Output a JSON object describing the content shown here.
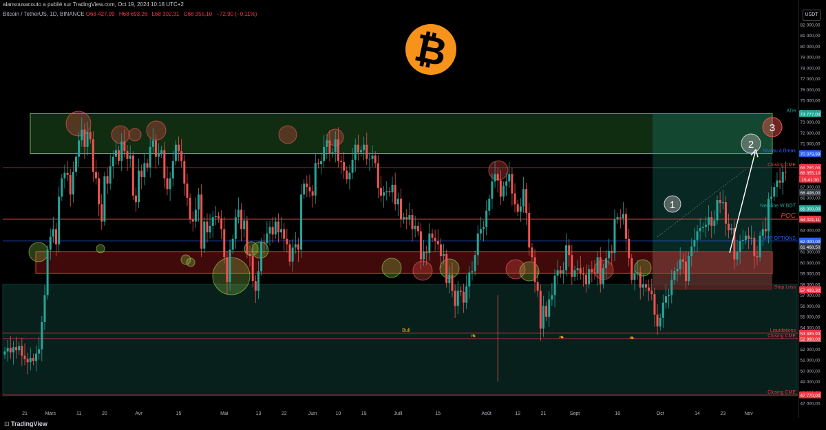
{
  "header": {
    "title": "alansousacouto a publié sur TradingView.com, Oct 19, 2024 10:18 UTC+2",
    "symbol": "Bitcoin / TetherUS, 1D, BINANCE",
    "ohlc": [
      "O68 427,99",
      "H68 693,26",
      "L68 302,31",
      "C68 355,10",
      "−72,90 (−0,11%)"
    ]
  },
  "currency": "USDT",
  "footer": {
    "logo_text": "TradingView"
  },
  "chart_data": {
    "type": "candlestick",
    "y_axis": {
      "range": [
        46500,
        82500
      ],
      "ticks": [
        47000,
        48000,
        49000,
        50000,
        51000,
        52000,
        53000,
        54000,
        55000,
        56000,
        57000,
        58000,
        59000,
        60000,
        61000,
        62000,
        63000,
        64000,
        65000,
        66000,
        67000,
        68000,
        69000,
        70000,
        71000,
        72000,
        73000,
        74000,
        75000,
        76000,
        77000,
        78000,
        79000,
        80000,
        81000,
        82000
      ],
      "tick_labels": [
        "47 000,00",
        "48 000,00",
        "49 000,00",
        "50 000,00",
        "51 000,00",
        "52 000,00",
        "53 000,00",
        "54 000,00",
        "55 000,00",
        "56 000,00",
        "57 000,00",
        "58 000,00",
        "59 000,00",
        "60 000,00",
        "61 000,00",
        "62 000,00",
        "63 000,00",
        "64 000,00",
        "65 000,00",
        "66 000,00",
        "67 000,00",
        "68 000,00",
        "69 000,00",
        "70 000,00",
        "71 000,00",
        "72 000,00",
        "73 000,00",
        "74 000,00",
        "75 000,00",
        "76 000,00",
        "77 000,00",
        "78 000,00",
        "79 000,00",
        "80 000,00",
        "81 000,00",
        "82 000,00"
      ]
    },
    "x_axis": {
      "labels": [
        {
          "text": "21",
          "date": "2024-02-21"
        },
        {
          "text": "Mars",
          "date": "2024-03-01"
        },
        {
          "text": "11",
          "date": "2024-03-11"
        },
        {
          "text": "20",
          "date": "2024-03-20"
        },
        {
          "text": "Avr",
          "date": "2024-04-01"
        },
        {
          "text": "15",
          "date": "2024-04-15"
        },
        {
          "text": "Mai",
          "date": "2024-05-01"
        },
        {
          "text": "13",
          "date": "2024-05-13"
        },
        {
          "text": "22",
          "date": "2024-05-22"
        },
        {
          "text": "Juin",
          "date": "2024-06-01"
        },
        {
          "text": "10",
          "date": "2024-06-10"
        },
        {
          "text": "19",
          "date": "2024-06-19"
        },
        {
          "text": "Juill",
          "date": "2024-07-01"
        },
        {
          "text": "15",
          "date": "2024-07-15"
        },
        {
          "text": "Août",
          "date": "2024-08-01"
        },
        {
          "text": "12",
          "date": "2024-08-12"
        },
        {
          "text": "21",
          "date": "2024-08-21"
        },
        {
          "text": "Sept",
          "date": "2024-09-01"
        },
        {
          "text": "16",
          "date": "2024-09-16"
        },
        {
          "text": "Oct",
          "date": "2024-10-01"
        },
        {
          "text": "14",
          "date": "2024-10-14"
        },
        {
          "text": "23",
          "date": "2024-10-23"
        },
        {
          "text": "Nov",
          "date": "2024-11-01"
        }
      ]
    },
    "candle_closes": {
      "start_date": "2024-02-14",
      "up_color": "#26a69a",
      "down_color": "#ef5350",
      "values": [
        51800,
        52100,
        51700,
        52200,
        51900,
        52300,
        51400,
        51100,
        50800,
        51200,
        50900,
        51600,
        52000,
        54500,
        57000,
        61200,
        62400,
        63100,
        61700,
        66100,
        67800,
        68300,
        68100,
        66300,
        68400,
        69800,
        71300,
        72300,
        70700,
        72100,
        71400,
        68400,
        67800,
        65400,
        63800,
        68000,
        67300,
        68900,
        69800,
        70400,
        69400,
        71200,
        70300,
        69600,
        69900,
        66200,
        65600,
        68500,
        67900,
        69200,
        68800,
        70700,
        71300,
        69800,
        70100,
        70400,
        67800,
        66800,
        67800,
        69400,
        70900,
        70300,
        69400,
        67300,
        66000,
        64000,
        63800,
        64900,
        66300,
        61300,
        63800,
        62800,
        63400,
        64200,
        64300,
        64100,
        63100,
        60500,
        58200,
        61200,
        62200,
        64200,
        64900,
        63100,
        63900,
        60800,
        60600,
        58300,
        57400,
        59200,
        61900,
        61800,
        62700,
        63300,
        62600,
        63800,
        62800,
        63100,
        62200,
        61700,
        60100,
        61400,
        61700,
        61200,
        66300,
        67300,
        67000,
        66600,
        66200,
        69200,
        69100,
        69400,
        70700,
        71300,
        70100,
        70200,
        71400,
        69400,
        69300,
        68500,
        67700,
        68300,
        69500,
        70900,
        70200,
        70400,
        70900,
        69600,
        69600,
        69900,
        69200,
        66900,
        66200,
        66500,
        66600,
        66500,
        67200,
        65400,
        65900,
        64000,
        64200,
        64000,
        64400,
        63100,
        63400,
        62900,
        60300,
        61000,
        60900,
        62700,
        62300,
        62000,
        61700,
        60600,
        60800,
        58100,
        58900,
        57400,
        56000,
        57400,
        57300,
        56300,
        57800,
        59100,
        59200,
        60700,
        62700,
        63100,
        63300,
        64800,
        65900,
        67500,
        68200,
        67600,
        66100,
        67100,
        67500,
        68200,
        66400,
        65400,
        64700,
        65200,
        66800,
        64600,
        61400,
        60500,
        58200,
        57400,
        53900,
        56000,
        55000,
        56600,
        57000,
        58800,
        59300,
        59000,
        59300,
        61600,
        60700,
        58700,
        59300,
        59500,
        59000,
        58900,
        58000,
        59400,
        59100,
        59000,
        60500,
        58000,
        59500,
        60400,
        61100,
        60900,
        64000,
        64200,
        64100,
        64500,
        62200,
        60400,
        58400,
        59000,
        59100,
        57700,
        58000,
        57700,
        57400,
        57100,
        55200,
        54100,
        54900,
        56300,
        56900,
        57000,
        58400,
        59200,
        59400,
        60300,
        60100,
        58300,
        60600,
        61500,
        62100,
        62900,
        63200,
        63300,
        63500,
        64200,
        63400,
        63900,
        65800,
        65500,
        65600,
        63600,
        63000,
        63200,
        60300,
        61000,
        62000,
        62100,
        62500,
        62200,
        62300,
        60600,
        60500,
        62500,
        63100,
        62900,
        65900,
        66100,
        67000,
        67600,
        67400,
        68400,
        68350
      ]
    },
    "zones": [
      {
        "name": "Green zone",
        "from": 70079.99,
        "to": 73777,
        "color": "#2e7d32"
      },
      {
        "name": "Red zone",
        "from": 59000,
        "to": 61000,
        "color": "#b71c1c"
      },
      {
        "name": "Teal zone",
        "from": 47700,
        "to": 58000,
        "color": "#0f3a33"
      }
    ],
    "levels": [
      {
        "value": 73777.0,
        "label": "ATH",
        "price": "73 777,00",
        "color": "#26a69a"
      },
      {
        "value": 70079.99,
        "label": "Niveau à Break",
        "price": "70 079,99",
        "color": "#2962ff"
      },
      {
        "value": 68785.0,
        "label": "Closing CME",
        "price": "68 785,00",
        "color": "#f23645"
      },
      {
        "value": 68355.1,
        "label": "",
        "price": "68 355,10",
        "color": "#f23645"
      },
      {
        "value": 66498.0,
        "label": "",
        "price": "66 498,00",
        "color": "#363a45"
      },
      {
        "value": 65000.0,
        "label": "Neckline W BOT",
        "price": "65 000,00",
        "color": "#26a69a"
      },
      {
        "value": 64021.11,
        "label": "POC",
        "price": "64 021,11",
        "color": "#f23645"
      },
      {
        "value": 62000.0,
        "label": "MPP OPTIONS",
        "price": "62 000,00",
        "color": "#2962ff"
      },
      {
        "value": 61468.5,
        "label": "",
        "price": "61 468,50",
        "color": "#363a45"
      },
      {
        "value": 57493.3,
        "label": "Stop Loss",
        "price": "57 493,30",
        "color": "#f23645"
      },
      {
        "value": 57493.3,
        "label": "",
        "price": "57 493,30",
        "color": "#f23645"
      },
      {
        "value": 53485.93,
        "label": "Liquidations",
        "price": "53 485,93",
        "color": "#f23645"
      },
      {
        "value": 52985.0,
        "label": "Closing CME",
        "price": "52 985,00",
        "color": "#363a45"
      },
      {
        "value": 52980.0,
        "label": "",
        "price": "52 980,00",
        "color": "#f23645"
      },
      {
        "value": 47770.0,
        "label": "Closing CME",
        "price": "47 770,00",
        "color": "#f23645"
      }
    ],
    "countdown": "15:41:30",
    "annotations": [
      {
        "text": "1",
        "price": 65000
      },
      {
        "text": "2",
        "price": 70500
      },
      {
        "text": "3",
        "price": 73777
      },
      {
        "text": "Bull",
        "price": 53200
      }
    ]
  }
}
